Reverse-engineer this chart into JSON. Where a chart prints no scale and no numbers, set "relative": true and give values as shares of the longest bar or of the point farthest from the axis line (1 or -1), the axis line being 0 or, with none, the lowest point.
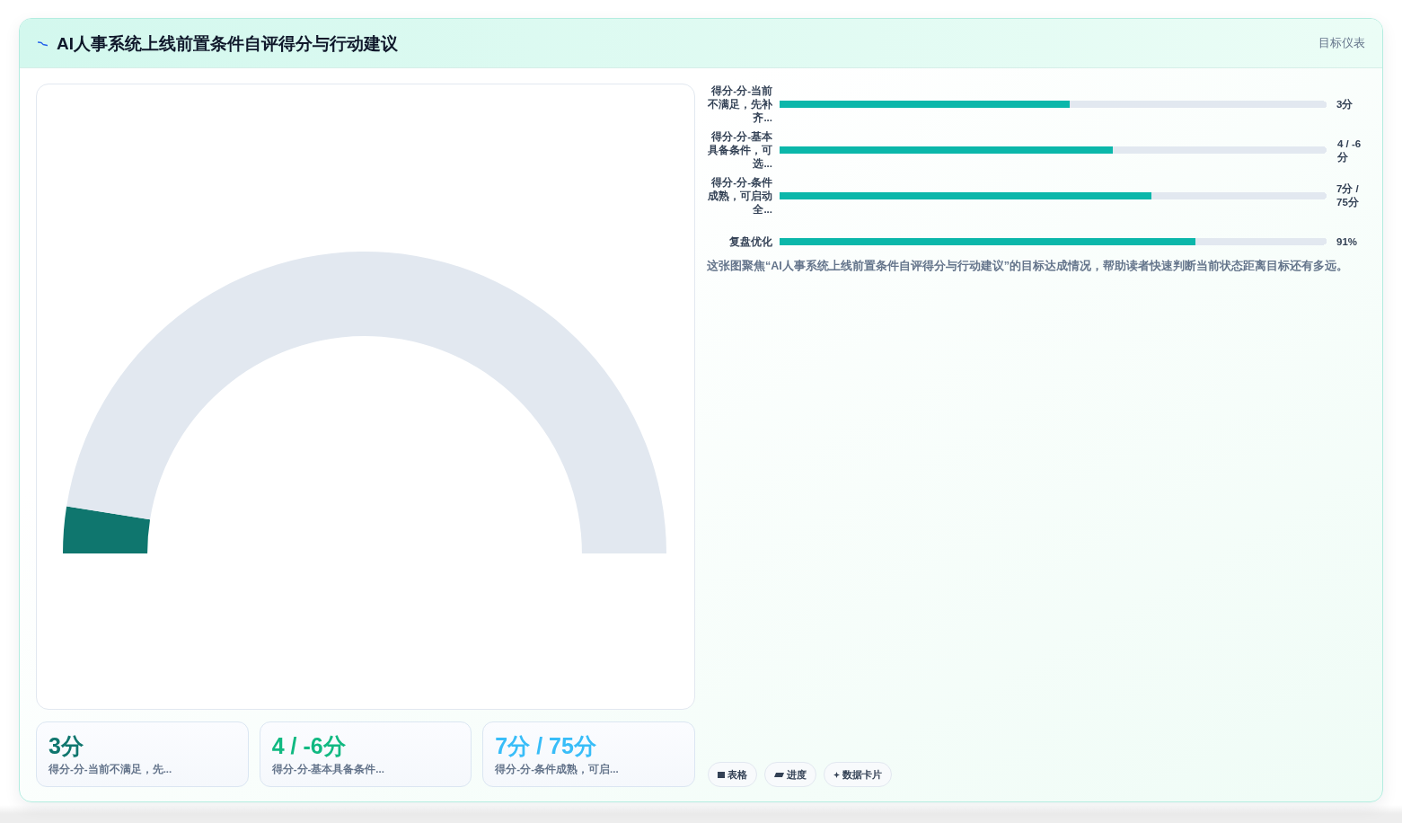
{
  "chart_data": [
    {
      "type": "donut",
      "title": "AI人事系统上线前置条件自评得分与行动建议",
      "annotations": [
        "目标仪表"
      ],
      "categories": [
        null,
        null
      ],
      "values": [
        5,
        95
      ],
      "colors": [
        "#0f766e",
        "#e2e8f0"
      ]
    },
    {
      "type": "bar",
      "orientation": "horizontal",
      "stacked": true,
      "relative": true,
      "categories": [
        "得分-分-当前不满足，先补齐...",
        "得分-分-基本具备条件，可选...",
        "得分-分-条件成熟，可启动全...",
        "复盘优化"
      ],
      "series": [
        {
          "color": "#0bb7aa",
          "values": [
            0.53,
            0.61,
            0.68,
            0.76
          ]
        },
        {
          "color": "#e2e8f0",
          "values": [
            0.47,
            0.39,
            0.32,
            0.24
          ]
        }
      ],
      "annotations": [
        "3分",
        "4 / -6分",
        "7分 / 75分",
        "91%",
        "这张图聚焦“AI人事系统上线前置条件自评得分与行动建议”的目标达成情况，帮助读者快速判断当前状态距离目标还有多远。"
      ]
    },
    {
      "type": "other",
      "annotations": [
        "3分",
        "得分-分-当前不满足，先...",
        "4 / -6分",
        "得分-分-基本具备条件...",
        "7分 / 75分",
        "得分-分-条件成熟，可启..."
      ]
    },
    {
      "type": "other",
      "annotations": [
        "表格",
        "进度",
        "数据卡片"
      ]
    }
  ]
}
